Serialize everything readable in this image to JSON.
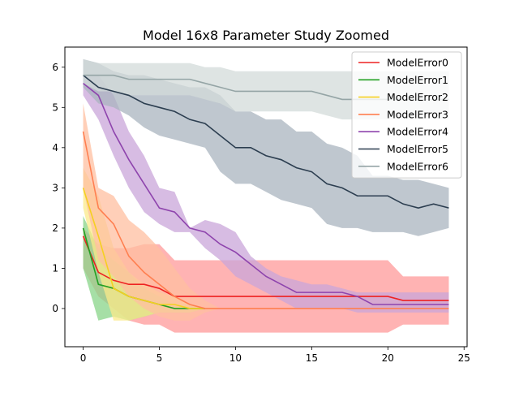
{
  "chart_data": {
    "type": "line",
    "title": "Model 16x8 Parameter Study Zoomed",
    "xlabel": "",
    "ylabel": "",
    "xlim": [
      -1.2,
      25.2
    ],
    "ylim": [
      -0.95,
      6.5
    ],
    "x_ticks": [
      0,
      5,
      10,
      15,
      20,
      25
    ],
    "y_ticks": [
      0,
      1,
      2,
      3,
      4,
      5,
      6
    ],
    "legend_position": "top-right",
    "grid": false,
    "series": [
      {
        "name": "ModelError0",
        "color": "#ee2222",
        "band_color": "#ff9999",
        "x": [
          0,
          1,
          2,
          3,
          4,
          5,
          6,
          7,
          8,
          9,
          10,
          11,
          12,
          13,
          14,
          15,
          16,
          17,
          18,
          19,
          20,
          21,
          22,
          23,
          24
        ],
        "values": [
          1.8,
          0.9,
          0.7,
          0.6,
          0.6,
          0.5,
          0.3,
          0.3,
          0.3,
          0.3,
          0.3,
          0.3,
          0.3,
          0.3,
          0.3,
          0.3,
          0.3,
          0.3,
          0.3,
          0.3,
          0.3,
          0.2,
          0.2,
          0.2,
          0.2
        ],
        "upper": [
          2.0,
          1.6,
          1.5,
          1.5,
          1.6,
          1.6,
          1.2,
          1.2,
          1.2,
          1.2,
          1.2,
          1.2,
          1.2,
          1.2,
          1.2,
          1.2,
          1.2,
          1.2,
          1.2,
          1.2,
          1.2,
          0.8,
          0.8,
          0.8,
          0.8
        ],
        "lower": [
          1.0,
          0.3,
          0.0,
          -0.3,
          -0.4,
          -0.4,
          -0.6,
          -0.6,
          -0.6,
          -0.6,
          -0.6,
          -0.6,
          -0.6,
          -0.6,
          -0.6,
          -0.6,
          -0.6,
          -0.6,
          -0.6,
          -0.6,
          -0.6,
          -0.4,
          -0.4,
          -0.4,
          -0.4
        ]
      },
      {
        "name": "ModelError1",
        "color": "#22a022",
        "band_color": "#88d488",
        "x": [
          0,
          1,
          2,
          3,
          4,
          5,
          6,
          7,
          8
        ],
        "values": [
          2.0,
          0.6,
          0.5,
          0.3,
          0.2,
          0.1,
          0.0,
          0.0,
          0.0
        ],
        "upper": [
          2.3,
          1.5,
          1.2,
          0.9,
          0.5,
          0.3,
          0.1,
          0.1,
          0.0
        ],
        "lower": [
          1.0,
          -0.3,
          -0.2,
          -0.3,
          -0.2,
          -0.1,
          -0.1,
          -0.1,
          0.0
        ]
      },
      {
        "name": "ModelError2",
        "color": "#f5d020",
        "band_color": "#fbe98a",
        "x": [
          0,
          1,
          2,
          3,
          4,
          5,
          6,
          7,
          8
        ],
        "values": [
          3.0,
          1.8,
          0.5,
          0.3,
          0.2,
          0.1,
          0.1,
          0.0,
          0.0
        ],
        "upper": [
          3.5,
          2.8,
          1.5,
          0.9,
          0.6,
          0.4,
          0.3,
          0.1,
          0.0
        ],
        "lower": [
          2.5,
          0.9,
          -0.3,
          -0.3,
          -0.2,
          -0.1,
          -0.1,
          -0.1,
          0.0
        ]
      },
      {
        "name": "ModelError3",
        "color": "#ff7f50",
        "band_color": "#ffbfa0",
        "x": [
          0,
          1,
          2,
          3,
          4,
          5,
          6,
          7,
          8,
          9,
          10,
          11,
          12,
          13,
          14,
          15,
          16,
          17,
          18,
          19,
          20,
          21,
          22,
          23,
          24
        ],
        "values": [
          4.4,
          2.5,
          2.1,
          1.3,
          0.9,
          0.6,
          0.3,
          0.1,
          0.0,
          0.0,
          0.0,
          0.0,
          0.0,
          0.0,
          0.0,
          0.0,
          0.0,
          0.0,
          0.0,
          0.0,
          0.0,
          0.0,
          0.0,
          0.0,
          0.0
        ],
        "upper": [
          5.1,
          3.0,
          2.8,
          2.2,
          1.9,
          1.5,
          1.0,
          0.5,
          0.2,
          0.0,
          0.0,
          0.0,
          0.0,
          0.0,
          0.0,
          0.0,
          0.0,
          0.0,
          0.0,
          0.0,
          0.0,
          0.0,
          0.0,
          0.0,
          0.0
        ],
        "lower": [
          3.0,
          1.2,
          0.8,
          0.3,
          0.0,
          -0.2,
          -0.3,
          -0.3,
          -0.1,
          0.0,
          0.0,
          0.0,
          0.0,
          0.0,
          0.0,
          0.0,
          0.0,
          0.0,
          0.0,
          0.0,
          0.0,
          0.0,
          0.0,
          0.0,
          0.0
        ]
      },
      {
        "name": "ModelError4",
        "color": "#8e44ad",
        "band_color": "#c9a6da",
        "x": [
          0,
          1,
          2,
          3,
          4,
          5,
          6,
          7,
          8,
          9,
          10,
          11,
          12,
          13,
          14,
          15,
          16,
          17,
          18,
          19,
          20,
          21,
          22,
          23,
          24
        ],
        "values": [
          5.6,
          5.3,
          4.4,
          3.7,
          3.1,
          2.5,
          2.4,
          2.0,
          1.9,
          1.6,
          1.4,
          1.1,
          0.8,
          0.6,
          0.4,
          0.4,
          0.4,
          0.4,
          0.3,
          0.1,
          0.1,
          0.1,
          0.1,
          0.1,
          0.1
        ],
        "upper": [
          5.8,
          5.8,
          5.3,
          4.4,
          3.8,
          3.0,
          2.9,
          2.0,
          2.2,
          2.1,
          1.9,
          1.3,
          1.0,
          0.8,
          0.7,
          0.6,
          0.6,
          0.5,
          0.4,
          0.4,
          0.4,
          0.4,
          0.4,
          0.4,
          0.4
        ],
        "lower": [
          5.3,
          4.7,
          3.8,
          3.0,
          2.4,
          2.1,
          1.9,
          1.9,
          1.5,
          1.2,
          0.8,
          0.6,
          0.4,
          0.2,
          0.0,
          0.0,
          0.0,
          0.0,
          -0.1,
          -0.1,
          -0.1,
          -0.1,
          -0.1,
          -0.1,
          -0.1
        ]
      },
      {
        "name": "ModelError5",
        "color": "#2c3e50",
        "band_color": "#aab4bf",
        "x": [
          0,
          1,
          2,
          3,
          4,
          5,
          6,
          7,
          8,
          9,
          10,
          11,
          12,
          13,
          14,
          15,
          16,
          17,
          18,
          19,
          20,
          21,
          22,
          23,
          24
        ],
        "values": [
          5.8,
          5.5,
          5.4,
          5.3,
          5.1,
          5.0,
          4.9,
          4.7,
          4.6,
          4.3,
          4.0,
          4.0,
          3.8,
          3.7,
          3.5,
          3.4,
          3.1,
          3.0,
          2.8,
          2.8,
          2.8,
          2.6,
          2.5,
          2.6,
          2.5
        ],
        "upper": [
          6.2,
          6.1,
          5.9,
          5.8,
          5.8,
          5.7,
          5.6,
          5.5,
          5.5,
          5.3,
          4.9,
          4.9,
          4.7,
          4.7,
          4.4,
          4.4,
          4.1,
          4.0,
          3.8,
          3.3,
          3.3,
          3.2,
          3.2,
          3.1,
          3.0
        ],
        "lower": [
          5.5,
          5.1,
          5.0,
          4.8,
          4.5,
          4.3,
          4.2,
          4.1,
          4.0,
          3.4,
          3.1,
          3.1,
          2.9,
          2.7,
          2.6,
          2.5,
          2.1,
          2.0,
          2.0,
          1.9,
          1.9,
          1.9,
          1.8,
          1.9,
          2.0
        ]
      },
      {
        "name": "ModelError6",
        "color": "#95a5a6",
        "band_color": "#d3dbda",
        "x": [
          0,
          1,
          2,
          3,
          4,
          5,
          6,
          7,
          8,
          9,
          10,
          11,
          12,
          13,
          14,
          15,
          16,
          17,
          18,
          19,
          20,
          21,
          22,
          23,
          24
        ],
        "values": [
          5.8,
          5.8,
          5.8,
          5.7,
          5.7,
          5.7,
          5.7,
          5.7,
          5.6,
          5.5,
          5.4,
          5.4,
          5.4,
          5.4,
          5.4,
          5.4,
          5.3,
          5.2,
          5.2,
          5.2,
          5.2,
          5.2,
          5.2,
          5.2,
          5.2
        ],
        "upper": [
          6.2,
          6.1,
          6.1,
          6.1,
          6.1,
          6.1,
          6.1,
          6.1,
          6.0,
          6.0,
          5.9,
          5.9,
          5.9,
          5.9,
          5.9,
          5.9,
          5.9,
          5.9,
          5.9,
          5.9,
          5.9,
          5.9,
          5.9,
          5.9,
          5.9
        ],
        "lower": [
          5.6,
          5.4,
          5.4,
          5.3,
          5.3,
          5.3,
          5.3,
          5.3,
          5.2,
          5.1,
          4.9,
          4.9,
          4.9,
          4.9,
          4.9,
          4.9,
          4.8,
          4.7,
          4.7,
          4.7,
          4.7,
          4.7,
          4.7,
          4.7,
          4.7
        ]
      }
    ]
  }
}
